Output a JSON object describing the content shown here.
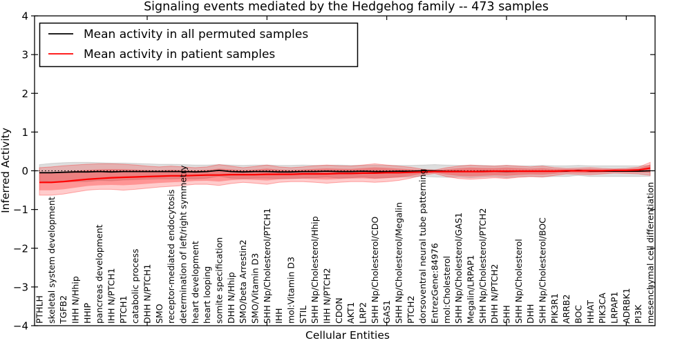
{
  "chart_data": {
    "type": "line",
    "title": "Signaling events mediated by the Hedgehog family -- 473 samples",
    "xlabel": "Cellular Entities",
    "ylabel": "Inferred Activity",
    "ylim": [
      -4,
      4
    ],
    "yticks": [
      -4,
      -3,
      -2,
      -1,
      0,
      1,
      2,
      3,
      4
    ],
    "xtick_major_indices": [
      9,
      19,
      29,
      39,
      49
    ],
    "grid": false,
    "legend_position": "upper left",
    "zero_line": {
      "y": 0,
      "style": "dotted",
      "color": "#000000"
    },
    "categories": [
      "PTHLH",
      "skeletal system development",
      "TGFB2",
      "IHH N/Hhip",
      "HHIP",
      "pancreas development",
      "IHH N/PTCH1",
      "PTCH1",
      "catabolic process",
      "DHH N/PTCH1",
      "SMO",
      "receptor-mediated endocytosis",
      "determination of left/right symmetry",
      "heart development",
      "heart looping",
      "somite specification",
      "DHH N/Hhip",
      "SMO/beta Arrestin2",
      "SMO/Vitamin D3",
      "SHH Np/Cholesterol/PTCH1",
      "IHH",
      "mol:Vitamin D3",
      "STIL",
      "SHH Np/Cholesterol/Hhip",
      "IHH N/PTCH2",
      "CDON",
      "AKT1",
      "LRP2",
      "SHH Np/Cholesterol/CDO",
      "GAS1",
      "SHH Np/Cholesterol/Megalin",
      "PTCH2",
      "dorsoventral neural tube patterning",
      "EntrezGene:84976",
      "mol:Cholesterol",
      "SHH Np/Cholesterol/GAS1",
      "Megalin/LRPAP1",
      "SHH Np/Cholesterol/PTCH2",
      "DHH N/PTCH2",
      "SHH",
      "SHH Np/Cholesterol",
      "DHH",
      "SHH Np/Cholesterol/BOC",
      "PIK3R1",
      "ARRB2",
      "BOC",
      "HHAT",
      "PIK3CA",
      "LRPAP1",
      "ADRBK1",
      "PI3K",
      "mesenchymal cell differentiation"
    ],
    "series": [
      {
        "name": "Mean activity in all permuted samples",
        "color": "#000000",
        "band_color": "#000000",
        "band_opacity": 0.13,
        "values": [
          -0.05,
          -0.05,
          -0.04,
          -0.03,
          -0.03,
          -0.02,
          -0.03,
          -0.02,
          -0.02,
          -0.02,
          -0.02,
          -0.02,
          -0.02,
          -0.03,
          -0.02,
          0.01,
          -0.02,
          -0.03,
          -0.02,
          -0.02,
          -0.03,
          -0.03,
          -0.02,
          -0.02,
          -0.01,
          -0.02,
          -0.02,
          -0.01,
          -0.02,
          -0.02,
          -0.01,
          -0.01,
          0.0,
          0.0,
          -0.01,
          -0.01,
          -0.02,
          -0.01,
          -0.01,
          -0.02,
          -0.01,
          -0.01,
          -0.01,
          -0.01,
          -0.01,
          0.01,
          -0.01,
          -0.01,
          -0.01,
          -0.01,
          -0.01,
          0.0
        ],
        "band_upper": [
          0.16,
          0.19,
          0.21,
          0.22,
          0.22,
          0.21,
          0.2,
          0.2,
          0.19,
          0.18,
          0.17,
          0.17,
          0.16,
          0.15,
          0.15,
          0.16,
          0.15,
          0.14,
          0.15,
          0.15,
          0.14,
          0.14,
          0.15,
          0.14,
          0.14,
          0.15,
          0.14,
          0.14,
          0.15,
          0.14,
          0.14,
          0.14,
          0.15,
          0.16,
          0.15,
          0.14,
          0.14,
          0.14,
          0.13,
          0.14,
          0.13,
          0.13,
          0.14,
          0.13,
          0.13,
          0.14,
          0.13,
          0.13,
          0.13,
          0.13,
          0.13,
          0.14
        ],
        "band_lower": [
          -0.26,
          -0.29,
          -0.29,
          -0.28,
          -0.28,
          -0.25,
          -0.26,
          -0.24,
          -0.23,
          -0.22,
          -0.21,
          -0.21,
          -0.2,
          -0.21,
          -0.19,
          -0.14,
          -0.19,
          -0.2,
          -0.19,
          -0.19,
          -0.2,
          -0.2,
          -0.19,
          -0.18,
          -0.16,
          -0.19,
          -0.18,
          -0.16,
          -0.19,
          -0.18,
          -0.16,
          -0.16,
          -0.15,
          -0.16,
          -0.17,
          -0.16,
          -0.18,
          -0.16,
          -0.15,
          -0.18,
          -0.15,
          -0.15,
          -0.16,
          -0.15,
          -0.15,
          -0.12,
          -0.15,
          -0.15,
          -0.15,
          -0.15,
          -0.15,
          -0.14
        ]
      },
      {
        "name": "Mean activity in patient samples",
        "color": "#ff0000",
        "band_color": "#ff0000",
        "band_opacity": 0.2,
        "values": [
          -0.3,
          -0.3,
          -0.28,
          -0.25,
          -0.22,
          -0.2,
          -0.18,
          -0.17,
          -0.16,
          -0.15,
          -0.14,
          -0.13,
          -0.13,
          -0.12,
          -0.11,
          -0.11,
          -0.1,
          -0.1,
          -0.1,
          -0.09,
          -0.09,
          -0.09,
          -0.08,
          -0.08,
          -0.08,
          -0.07,
          -0.07,
          -0.06,
          -0.06,
          -0.05,
          -0.05,
          -0.04,
          -0.03,
          -0.02,
          -0.02,
          -0.02,
          -0.02,
          -0.02,
          -0.01,
          -0.01,
          -0.01,
          -0.01,
          -0.01,
          -0.01,
          0.0,
          0.0,
          0.0,
          0.0,
          0.01,
          0.01,
          0.02,
          0.07
        ],
        "band_upper": [
          0.08,
          0.1,
          0.13,
          0.15,
          0.17,
          0.18,
          0.18,
          0.17,
          0.15,
          0.12,
          0.1,
          0.12,
          0.1,
          0.08,
          0.1,
          0.16,
          0.12,
          0.08,
          0.11,
          0.15,
          0.1,
          0.08,
          0.1,
          0.13,
          0.15,
          0.13,
          0.12,
          0.15,
          0.18,
          0.15,
          0.12,
          0.09,
          0.04,
          0.02,
          0.08,
          0.12,
          0.15,
          0.13,
          0.12,
          0.14,
          0.12,
          0.1,
          0.12,
          0.08,
          0.06,
          0.07,
          0.08,
          0.06,
          0.05,
          0.06,
          0.09,
          0.22
        ],
        "band_lower": [
          -0.63,
          -0.63,
          -0.6,
          -0.55,
          -0.5,
          -0.48,
          -0.48,
          -0.5,
          -0.48,
          -0.45,
          -0.42,
          -0.4,
          -0.38,
          -0.35,
          -0.35,
          -0.38,
          -0.33,
          -0.3,
          -0.32,
          -0.35,
          -0.3,
          -0.28,
          -0.28,
          -0.3,
          -0.32,
          -0.3,
          -0.28,
          -0.28,
          -0.3,
          -0.28,
          -0.25,
          -0.19,
          -0.11,
          -0.07,
          -0.15,
          -0.2,
          -0.22,
          -0.2,
          -0.18,
          -0.2,
          -0.17,
          -0.15,
          -0.16,
          -0.12,
          -0.08,
          -0.09,
          -0.1,
          -0.08,
          -0.06,
          -0.07,
          -0.08,
          -0.12
        ]
      }
    ]
  }
}
